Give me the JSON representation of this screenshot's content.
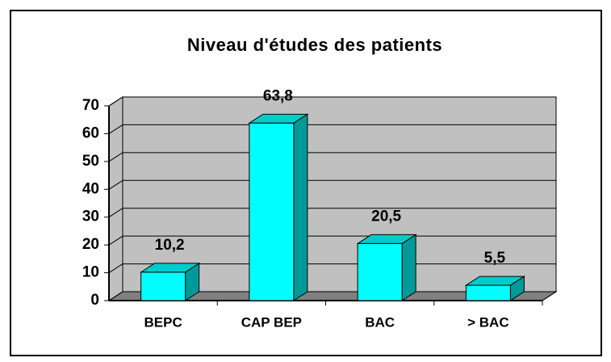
{
  "chart_data": {
    "type": "bar",
    "title": "Niveau d'études des patients",
    "categories": [
      "BEPC",
      "CAP BEP",
      "BAC",
      "> BAC"
    ],
    "values": [
      10.2,
      63.8,
      20.5,
      5.5
    ],
    "value_labels": [
      "10,2",
      "63,8",
      "20,5",
      "5,5"
    ],
    "color": "#00ffff",
    "ylim": [
      0,
      70
    ],
    "yticks": [
      0,
      10,
      20,
      30,
      40,
      50,
      60,
      70
    ],
    "grid": true
  }
}
